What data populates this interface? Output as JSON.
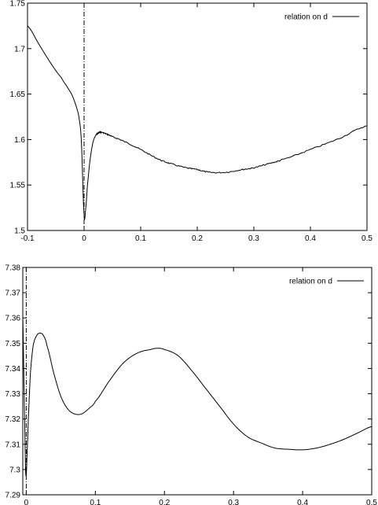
{
  "chart_data": [
    {
      "type": "line",
      "title": "",
      "xlabel": "",
      "ylabel": "",
      "xlim": [
        -0.1,
        0.5
      ],
      "ylim": [
        1.5,
        1.75
      ],
      "xticks": [
        -0.1,
        0,
        0.1,
        0.2,
        0.3,
        0.4,
        0.5
      ],
      "xtick_labels": [
        "-0.1",
        "0",
        "0.1",
        "0.2",
        "0.3",
        "0.4",
        "0.5"
      ],
      "yticks": [
        1.5,
        1.55,
        1.6,
        1.65,
        1.7,
        1.75
      ],
      "ytick_labels": [
        "1.5",
        "1.55",
        "1.6",
        "1.65",
        "1.7",
        "1.75"
      ],
      "grid": false,
      "legend": "top-right",
      "vertical_line_x": 0,
      "noisy": true,
      "series": [
        {
          "name": "relation on d",
          "x": [
            -0.1,
            -0.08,
            -0.06,
            -0.04,
            -0.03,
            -0.02,
            -0.01,
            -0.005,
            0,
            0.003,
            0.006,
            0.01,
            0.015,
            0.02,
            0.025,
            0.03,
            0.04,
            0.05,
            0.07,
            0.1,
            0.13,
            0.15,
            0.18,
            0.2,
            0.22,
            0.25,
            0.28,
            0.3,
            0.33,
            0.35,
            0.4,
            0.45,
            0.5
          ],
          "y": [
            1.725,
            1.705,
            1.685,
            1.668,
            1.658,
            1.647,
            1.628,
            1.6,
            1.517,
            1.525,
            1.55,
            1.575,
            1.595,
            1.604,
            1.607,
            1.608,
            1.606,
            1.603,
            1.598,
            1.589,
            1.579,
            1.574,
            1.569,
            1.567,
            1.564,
            1.564,
            1.567,
            1.569,
            1.574,
            1.578,
            1.589,
            1.601,
            1.615
          ]
        }
      ]
    },
    {
      "type": "line",
      "title": "",
      "xlabel": "",
      "ylabel": "",
      "xlim": [
        -0.005,
        0.5
      ],
      "ylim": [
        7.29,
        7.38
      ],
      "xticks": [
        0,
        0.1,
        0.2,
        0.3,
        0.4,
        0.5
      ],
      "xtick_labels": [
        "0",
        "0.1",
        "0.2",
        "0.3",
        "0.4",
        "0.5"
      ],
      "yticks": [
        7.29,
        7.3,
        7.31,
        7.32,
        7.33,
        7.34,
        7.35,
        7.36,
        7.37,
        7.38
      ],
      "ytick_labels": [
        "7.29",
        "7.3",
        "7.31",
        "7.32",
        "7.33",
        "7.34",
        "7.35",
        "7.36",
        "7.37",
        "7.38"
      ],
      "grid": false,
      "legend": "top-right",
      "vertical_line_x": 0,
      "noisy": false,
      "series": [
        {
          "name": "relation on d",
          "x": [
            -0.005,
            -0.003,
            -0.002,
            -0.001,
            0,
            0.001,
            0.003,
            0.006,
            0.01,
            0.015,
            0.02,
            0.025,
            0.03,
            0.04,
            0.05,
            0.06,
            0.07,
            0.08,
            0.09,
            0.1,
            0.12,
            0.14,
            0.16,
            0.18,
            0.19,
            0.2,
            0.22,
            0.24,
            0.26,
            0.28,
            0.3,
            0.32,
            0.34,
            0.36,
            0.38,
            0.4,
            0.42,
            0.44,
            0.46,
            0.48,
            0.5
          ],
          "y": [
            7.36,
            7.33,
            7.315,
            7.3,
            7.298,
            7.305,
            7.32,
            7.338,
            7.349,
            7.353,
            7.354,
            7.353,
            7.349,
            7.338,
            7.329,
            7.324,
            7.322,
            7.322,
            7.324,
            7.327,
            7.335,
            7.342,
            7.346,
            7.3475,
            7.348,
            7.3475,
            7.345,
            7.339,
            7.332,
            7.325,
            7.318,
            7.313,
            7.3105,
            7.3085,
            7.308,
            7.3078,
            7.3085,
            7.31,
            7.312,
            7.3145,
            7.317
          ]
        }
      ]
    }
  ]
}
